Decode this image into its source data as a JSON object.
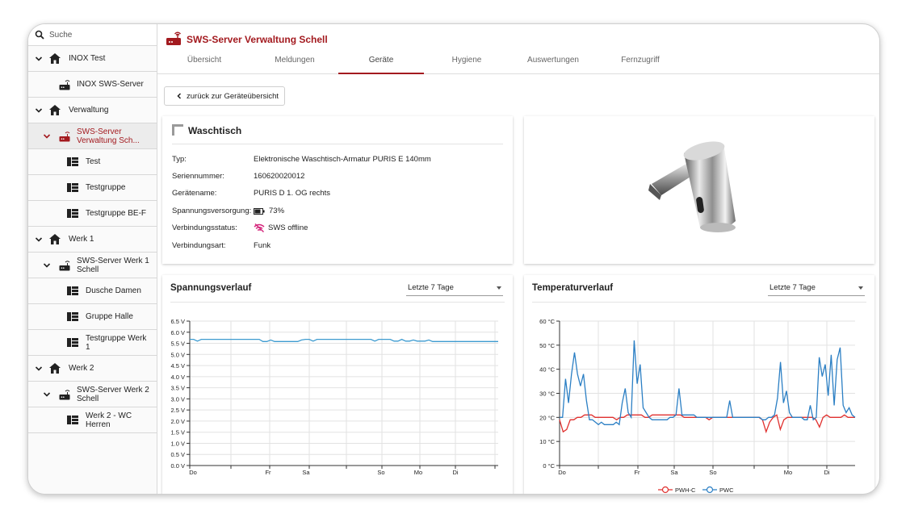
{
  "search": {
    "placeholder": "Suche"
  },
  "sidebar": {
    "items": [
      {
        "label": "INOX Test",
        "type": "site",
        "level": 0,
        "expanded": true
      },
      {
        "label": "INOX SWS-Server",
        "type": "server",
        "level": 1
      },
      {
        "label": "Verwaltung",
        "type": "site",
        "level": 0,
        "expanded": true
      },
      {
        "label": "SWS-Server Verwaltung Sch...",
        "type": "server",
        "level": 1,
        "expanded": true,
        "active": true
      },
      {
        "label": "Test",
        "type": "group",
        "level": 2
      },
      {
        "label": "Testgruppe",
        "type": "group",
        "level": 2
      },
      {
        "label": "Testgruppe BE-F",
        "type": "group",
        "level": 2
      },
      {
        "label": "Werk 1",
        "type": "site",
        "level": 0,
        "expanded": true
      },
      {
        "label": "SWS-Server Werk 1 Schell",
        "type": "server",
        "level": 1,
        "expanded": true
      },
      {
        "label": "Dusche Damen",
        "type": "group",
        "level": 2
      },
      {
        "label": "Gruppe Halle",
        "type": "group",
        "level": 2
      },
      {
        "label": "Testgruppe Werk 1",
        "type": "group",
        "level": 2
      },
      {
        "label": "Werk 2",
        "type": "site",
        "level": 0,
        "expanded": true
      },
      {
        "label": "SWS-Server Werk 2 Schell",
        "type": "server",
        "level": 1,
        "expanded": true
      },
      {
        "label": "Werk 2 - WC Herren",
        "type": "group",
        "level": 2
      }
    ]
  },
  "header": {
    "title": "SWS-Server Verwaltung Schell",
    "tabs": [
      {
        "label": "Übersicht"
      },
      {
        "label": "Meldungen"
      },
      {
        "label": "Geräte",
        "active": true
      },
      {
        "label": "Hygiene"
      },
      {
        "label": "Auswertungen"
      },
      {
        "label": "Fernzugriff"
      }
    ]
  },
  "back_button": {
    "label": "zurück zur Geräteübersicht"
  },
  "device": {
    "title": "Waschtisch",
    "fields": [
      {
        "key": "Typ:",
        "value": "Elektronische Waschtisch-Armatur PURIS E 140mm"
      },
      {
        "key": "Seriennummer:",
        "value": "160620020012"
      },
      {
        "key": "Gerätename:",
        "value": "PURIS D 1. OG rechts"
      },
      {
        "key": "Spannungsversorgung:",
        "value": "73%",
        "icon": "battery-icon",
        "level": 0.73
      },
      {
        "key": "Verbindungsstatus:",
        "value": "SWS offline",
        "icon": "wifi-off-icon"
      },
      {
        "key": "Verbindungsart:",
        "value": "Funk"
      }
    ]
  },
  "colors": {
    "brand": "#a31a1f",
    "pwhc": "#e0312f",
    "pwc": "#2b7fc4",
    "voltage": "#3d9bd0"
  },
  "chart_data": [
    {
      "type": "line",
      "title": "Spannungsverlauf",
      "range_select": "Letzte 7 Tage",
      "x_ticks": [
        "Do",
        "Fr",
        "Sa",
        "So",
        "Mo",
        "Di"
      ],
      "y_ticks": [
        "0.0 V",
        "0.5 V",
        "1.0 V",
        "1.5 V",
        "2.0 V",
        "2.5 V",
        "3.0 V",
        "3.5 V",
        "4.0 V",
        "4.5 V",
        "5.0 V",
        "5.5 V",
        "6.0 V",
        "6.5 V"
      ],
      "ylim": [
        0,
        6.5
      ],
      "grid": true,
      "series": [
        {
          "values": [
            5.68,
            5.68,
            5.6,
            5.68,
            5.68,
            5.68,
            5.68,
            5.68,
            5.68,
            5.68,
            5.68,
            5.68,
            5.68,
            5.68,
            5.68,
            5.68,
            5.68,
            5.68,
            5.68,
            5.58,
            5.58,
            5.65,
            5.58,
            5.58,
            5.58,
            5.58,
            5.58,
            5.58,
            5.58,
            5.65,
            5.68,
            5.68,
            5.6,
            5.68,
            5.68,
            5.68,
            5.68,
            5.68,
            5.68,
            5.68,
            5.68,
            5.68,
            5.68,
            5.68,
            5.68,
            5.68,
            5.68,
            5.68,
            5.6,
            5.68,
            5.68,
            5.68,
            5.68,
            5.6,
            5.6,
            5.68,
            5.6,
            5.6,
            5.65,
            5.6,
            5.6,
            5.6,
            5.65,
            5.58,
            5.58,
            5.58,
            5.58,
            5.58,
            5.58,
            5.58,
            5.58,
            5.58,
            5.58,
            5.58,
            5.58,
            5.58,
            5.58,
            5.58,
            5.58,
            5.58,
            5.58
          ]
        }
      ]
    },
    {
      "type": "line",
      "title": "Temperaturverlauf",
      "range_select": "Letzte 7 Tage",
      "x_ticks": [
        "Do",
        "Fr",
        "Sa",
        "So",
        "Mo",
        "Di"
      ],
      "y_ticks": [
        "0 °C",
        "10 °C",
        "20 °C",
        "30 °C",
        "40 °C",
        "50 °C",
        "60 °C"
      ],
      "ylim": [
        0,
        60
      ],
      "grid": true,
      "legend": "bottom",
      "series": [
        {
          "name": "PWH-C",
          "values": [
            19,
            14,
            15,
            19,
            19,
            20,
            20,
            21,
            21,
            21,
            20,
            20,
            20,
            20,
            20,
            20,
            19,
            20,
            20,
            21,
            21,
            21,
            21,
            21,
            20,
            20,
            21,
            21,
            21,
            21,
            21,
            21,
            21,
            21,
            21,
            20,
            20,
            20,
            20,
            20,
            20,
            20,
            19,
            20,
            20,
            20,
            20,
            20,
            20,
            20,
            20,
            20,
            20,
            20,
            20,
            20,
            20,
            19,
            14,
            18,
            20,
            21,
            15,
            19,
            20,
            20,
            20,
            20,
            20,
            20,
            20,
            20,
            19,
            16,
            20,
            21,
            20,
            20,
            20,
            20,
            21,
            20,
            20,
            20
          ]
        },
        {
          "name": "PWC",
          "values": [
            20,
            20,
            36,
            26,
            38,
            47,
            38,
            33,
            38,
            27,
            19,
            19,
            18,
            17,
            18,
            17,
            17,
            17,
            17,
            18,
            17,
            26,
            32,
            22,
            20,
            52,
            34,
            42,
            24,
            22,
            20,
            19,
            19,
            19,
            19,
            19,
            19,
            20,
            20,
            21,
            32,
            21,
            21,
            21,
            21,
            21,
            20,
            20,
            20,
            20,
            20,
            20,
            20,
            20,
            20,
            20,
            20,
            27,
            20,
            20,
            20,
            20,
            20,
            20,
            20,
            20,
            20,
            20,
            19,
            19,
            20,
            20,
            21,
            28,
            43,
            26,
            31,
            22,
            20,
            20,
            20,
            20,
            19,
            19,
            25,
            19,
            20,
            45,
            37,
            42,
            29,
            46,
            25,
            44,
            49,
            25,
            22,
            24,
            21,
            20
          ]
        }
      ]
    }
  ]
}
